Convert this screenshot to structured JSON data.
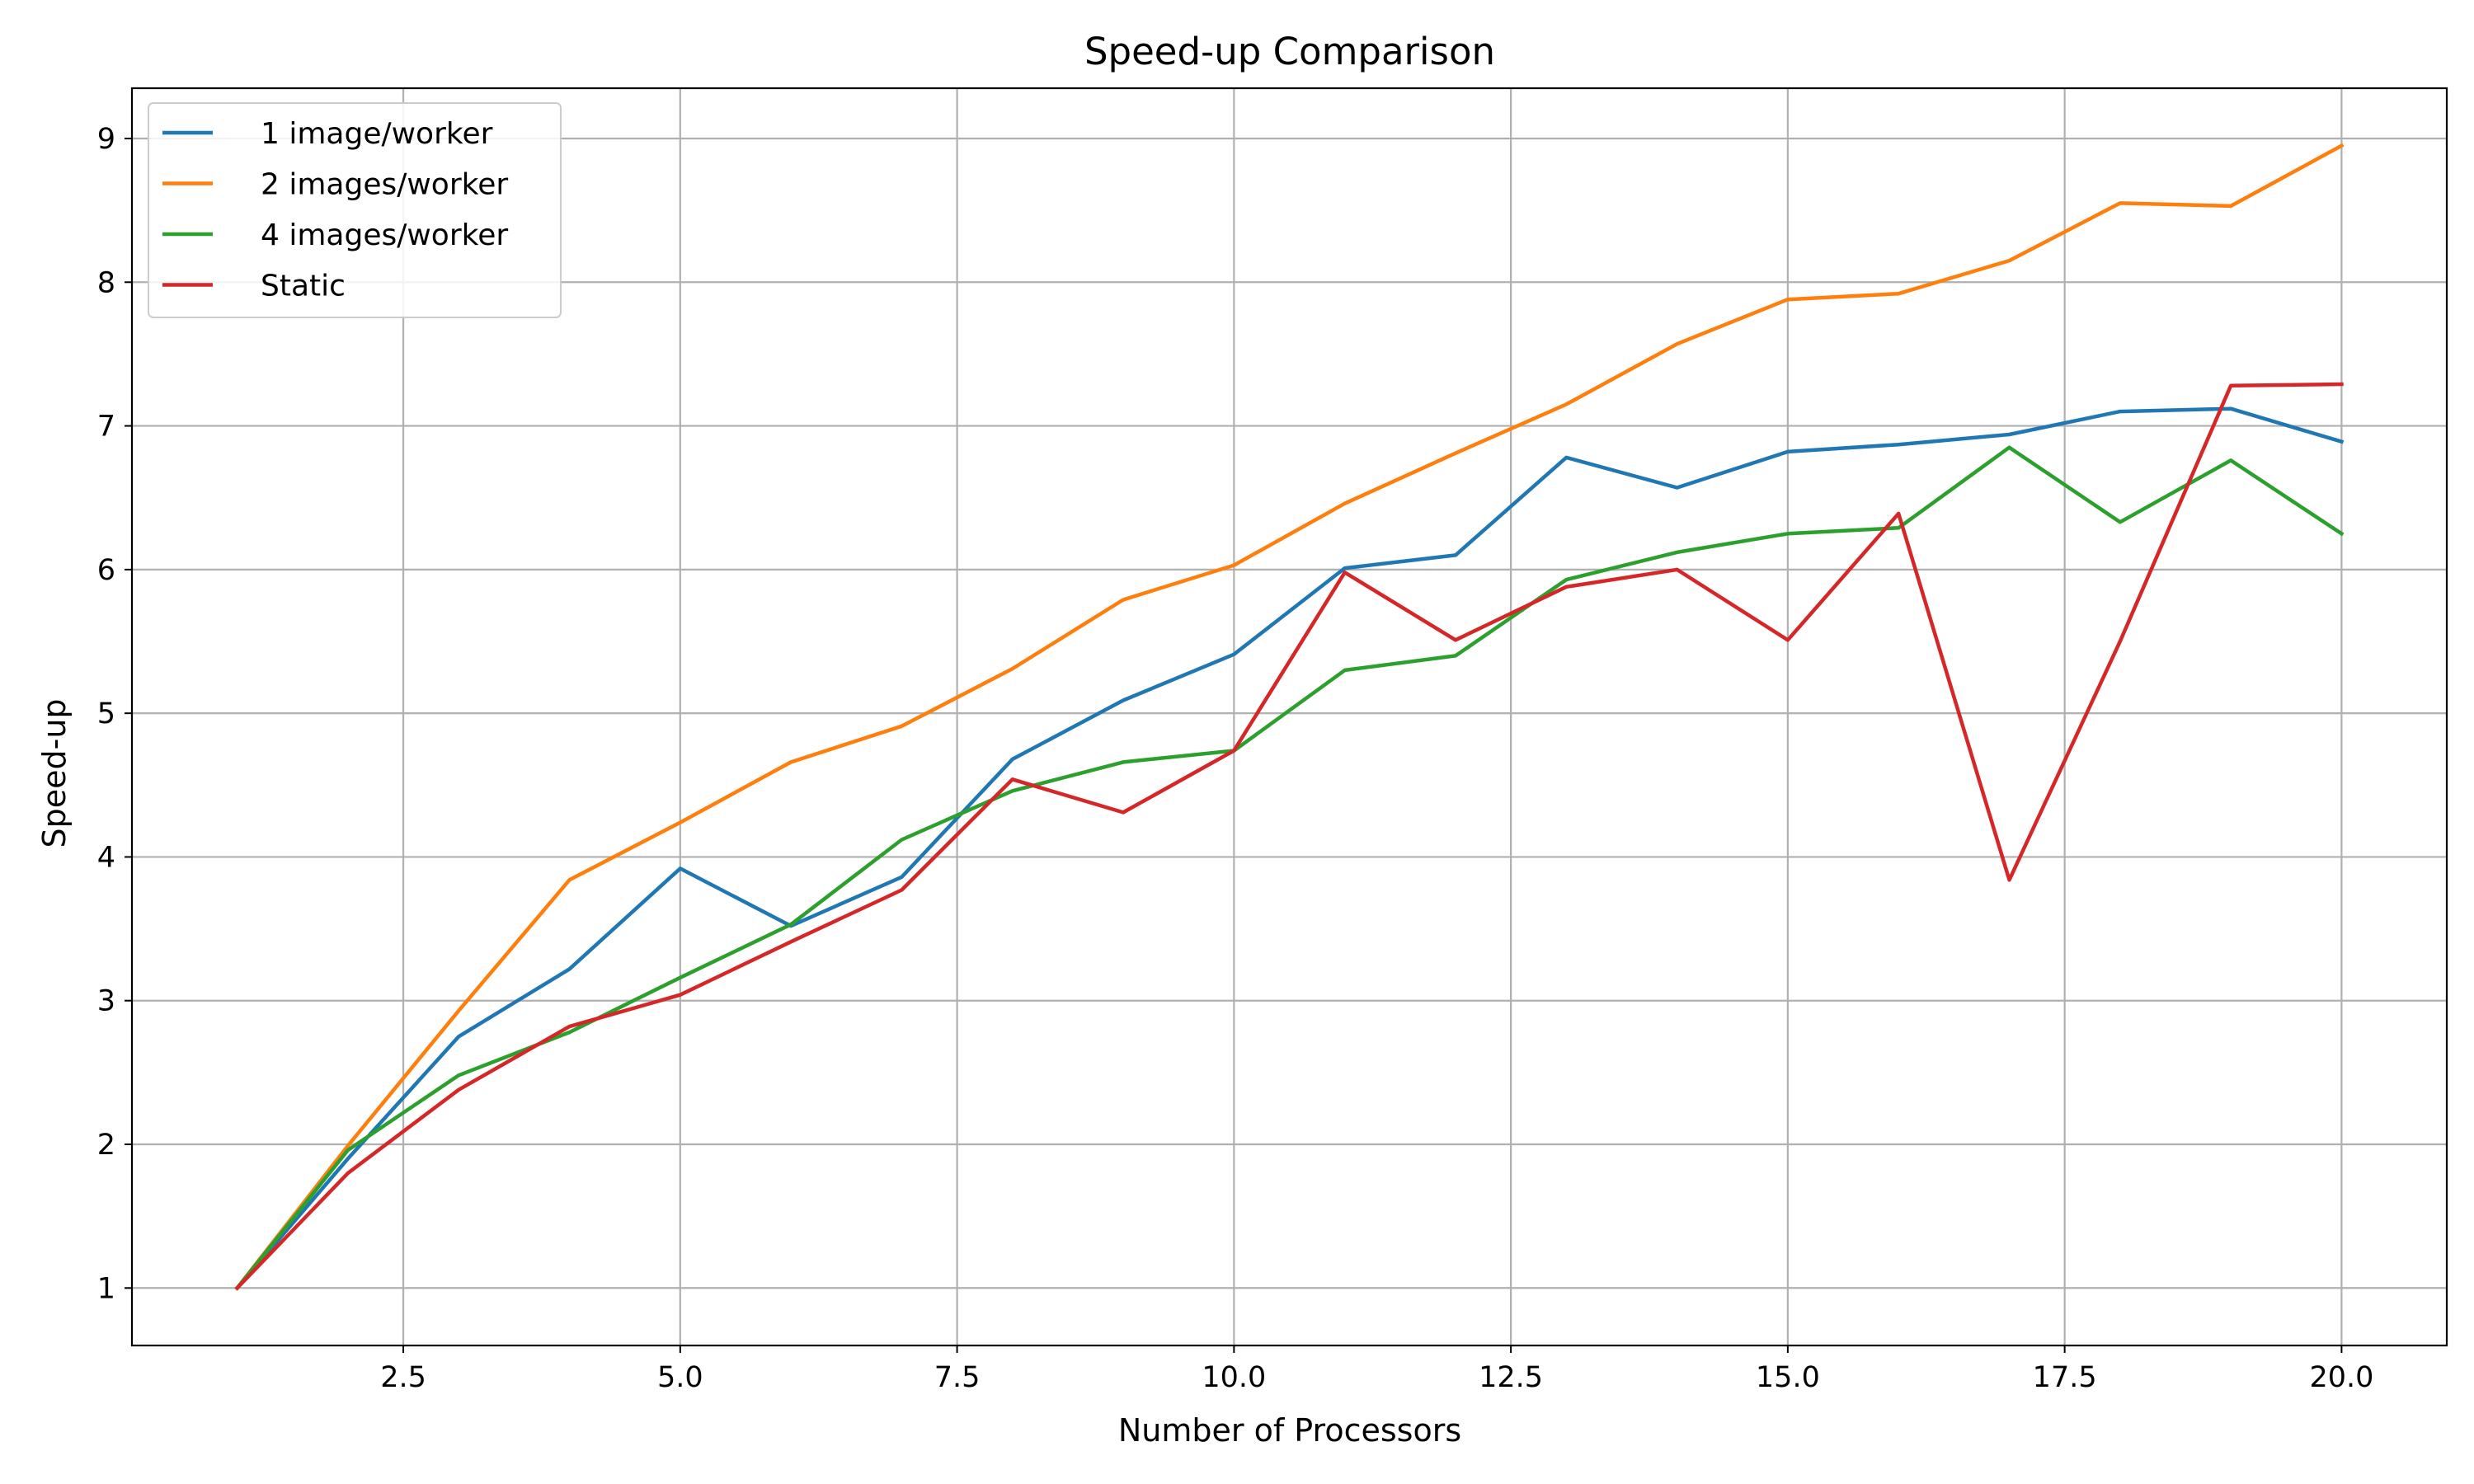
{
  "chart_data": {
    "type": "line",
    "title": "Speed-up Comparison",
    "xlabel": "Number of Processors",
    "ylabel": "Speed-up",
    "xlim": [
      0.05,
      20.95
    ],
    "ylim": [
      0.6,
      9.35
    ],
    "xticks": [
      2.5,
      5.0,
      7.5,
      10.0,
      12.5,
      15.0,
      17.5,
      20.0
    ],
    "xtick_labels": [
      "2.5",
      "5.0",
      "7.5",
      "10.0",
      "12.5",
      "15.0",
      "17.5",
      "20.0"
    ],
    "yticks": [
      1,
      2,
      3,
      4,
      5,
      6,
      7,
      8,
      9
    ],
    "ytick_labels": [
      "1",
      "2",
      "3",
      "4",
      "5",
      "6",
      "7",
      "8",
      "9"
    ],
    "grid": true,
    "legend_position": "top-left",
    "x": [
      1,
      2,
      3,
      4,
      5,
      6,
      7,
      8,
      9,
      10,
      11,
      12,
      13,
      14,
      15,
      16,
      17,
      18,
      19,
      20
    ],
    "series": [
      {
        "name": "1 image/worker",
        "color": "#1f77b4",
        "values": [
          1.0,
          1.9,
          2.75,
          3.22,
          3.92,
          3.52,
          3.86,
          4.68,
          5.09,
          5.41,
          6.01,
          6.1,
          6.78,
          6.57,
          6.82,
          6.87,
          6.94,
          7.1,
          7.12,
          6.89
        ]
      },
      {
        "name": "2 images/worker",
        "color": "#ff7f0e",
        "values": [
          1.0,
          1.99,
          2.93,
          3.84,
          4.24,
          4.66,
          4.91,
          5.31,
          5.79,
          6.03,
          6.46,
          6.81,
          7.15,
          7.57,
          7.88,
          7.92,
          8.15,
          8.55,
          8.53,
          8.95
        ]
      },
      {
        "name": "4 images/worker",
        "color": "#2ca02c",
        "values": [
          1.0,
          1.96,
          2.48,
          2.78,
          3.16,
          3.53,
          4.12,
          4.46,
          4.66,
          4.74,
          5.3,
          5.4,
          5.93,
          6.12,
          6.25,
          6.29,
          6.85,
          6.33,
          6.76,
          6.25
        ]
      },
      {
        "name": "Static",
        "color": "#d62728",
        "values": [
          1.0,
          1.8,
          2.38,
          2.82,
          3.04,
          3.41,
          3.77,
          4.54,
          4.31,
          4.74,
          5.98,
          5.51,
          5.88,
          6.0,
          5.51,
          6.39,
          3.84,
          5.5,
          7.28,
          7.29
        ]
      }
    ]
  }
}
